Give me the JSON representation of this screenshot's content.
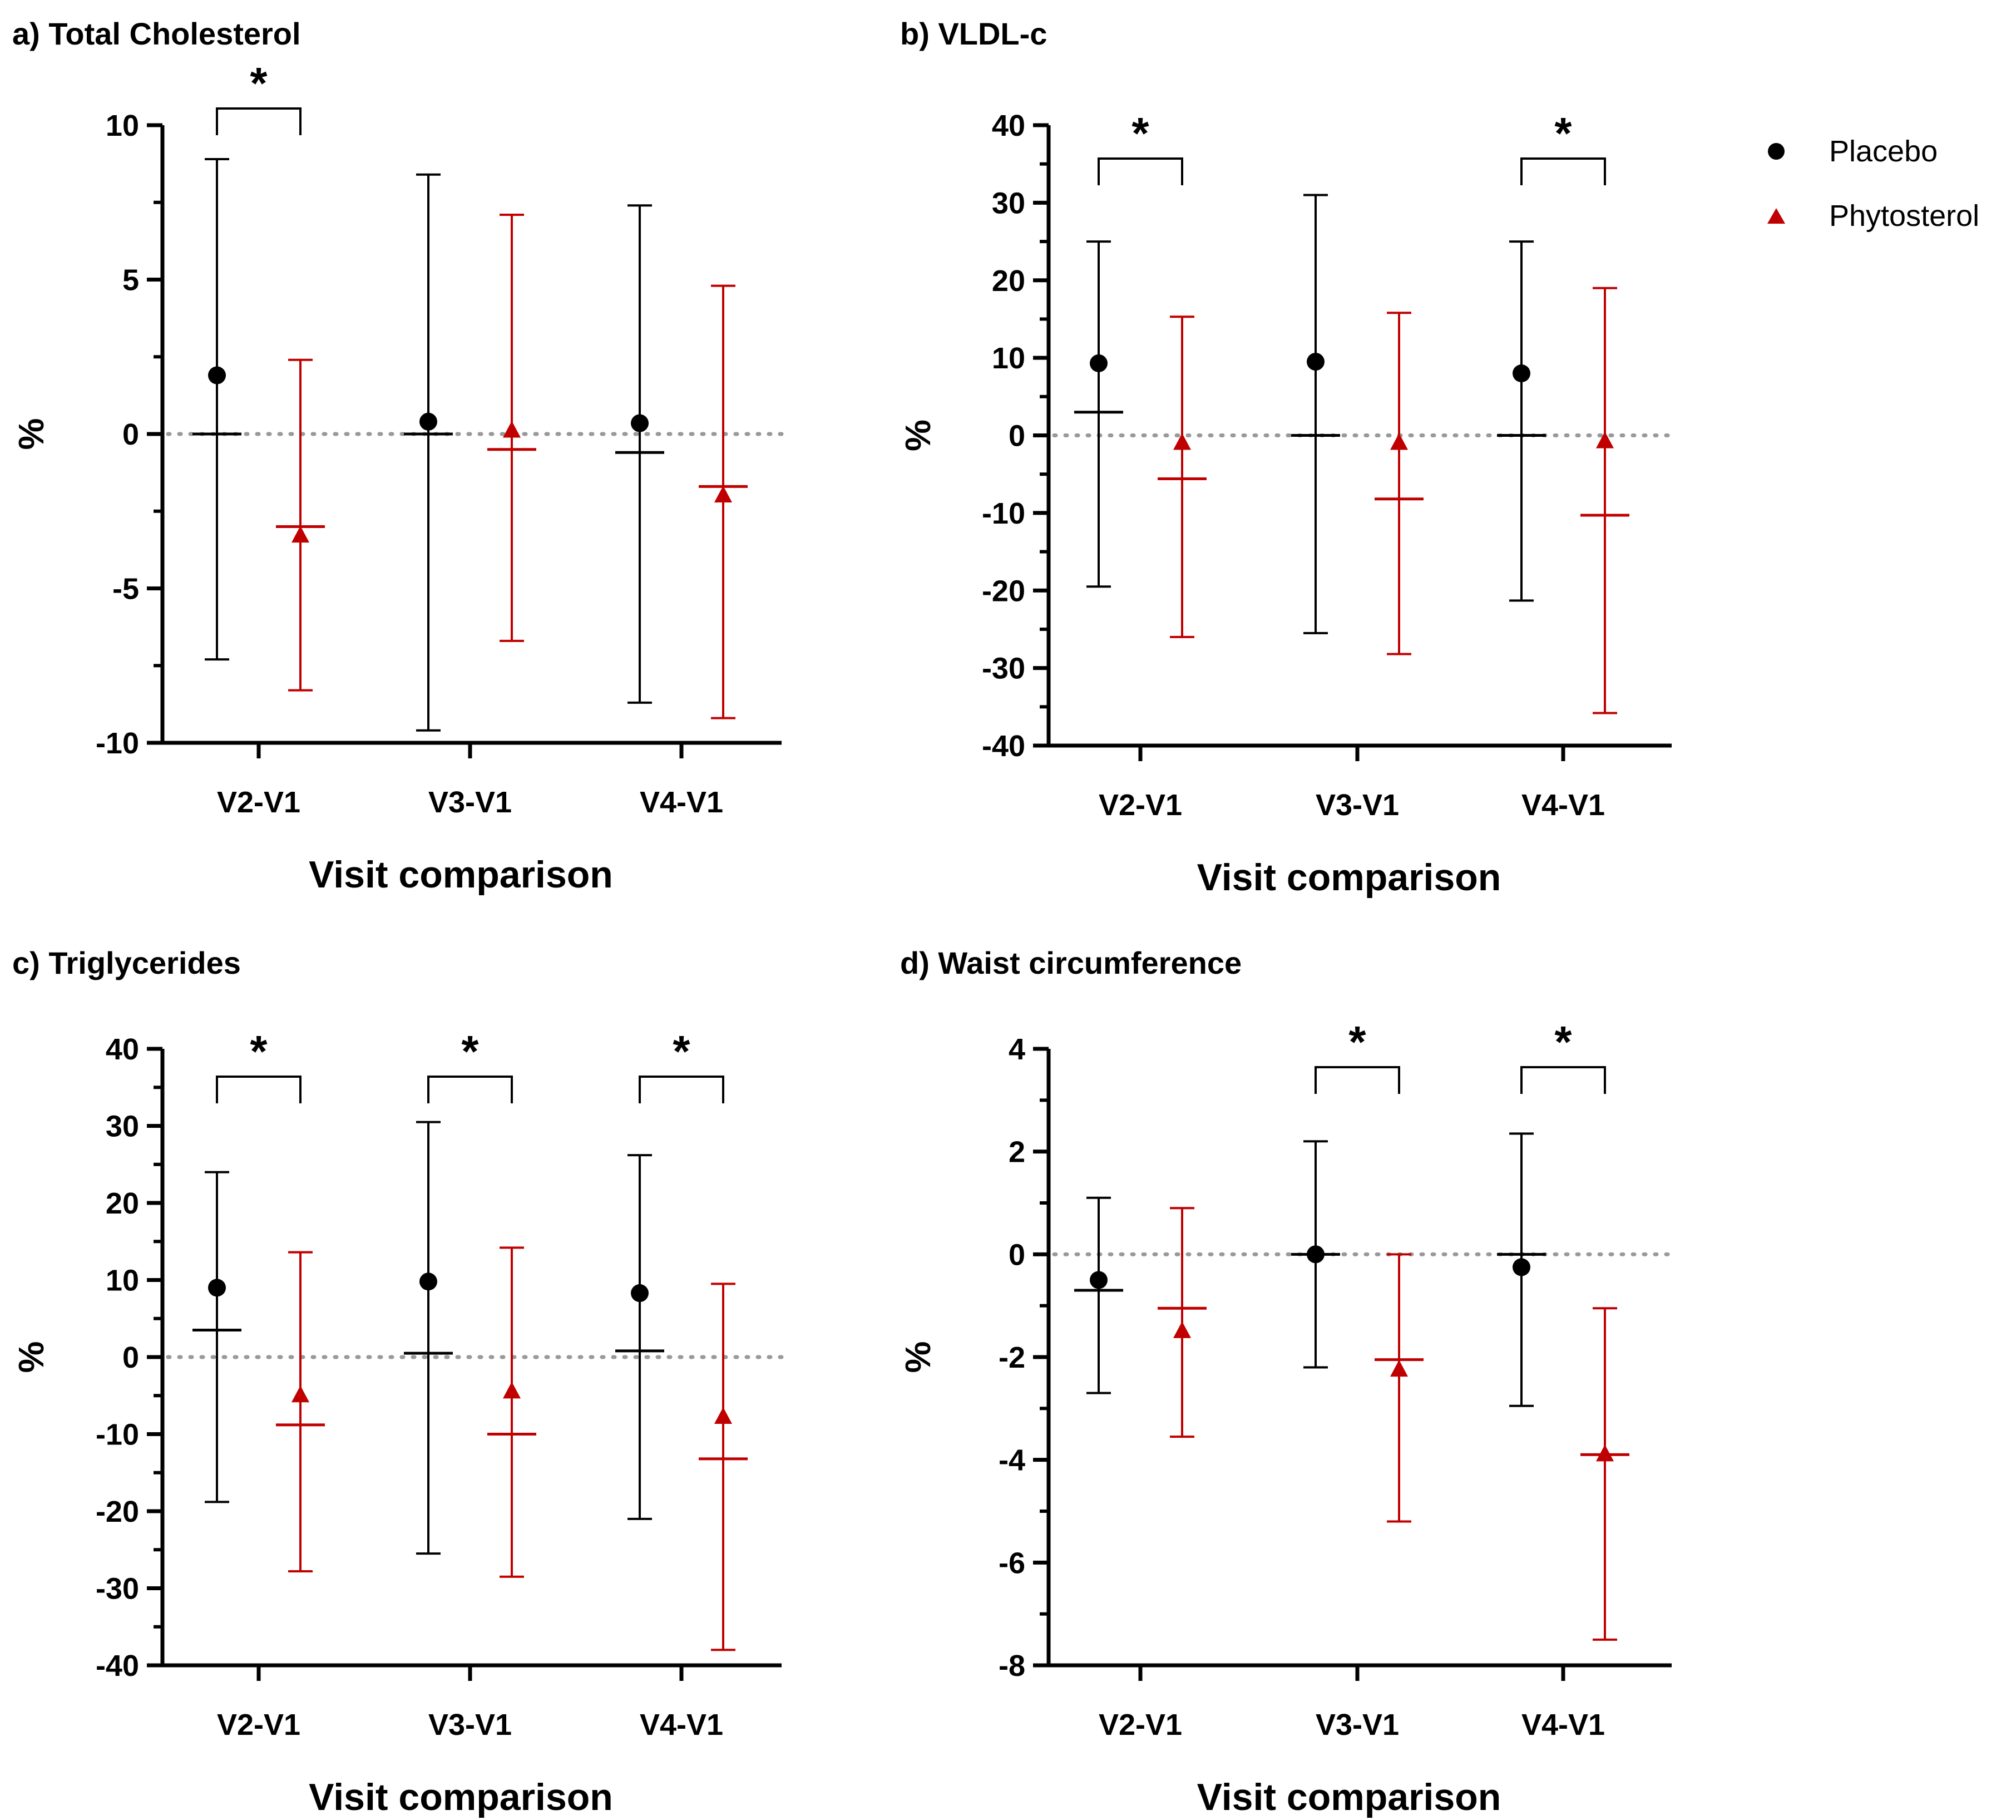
{
  "chart_data": [
    {
      "type": "scatter",
      "title": "a) Total Cholesterol",
      "xlabel": "Visit comparison",
      "ylabel": "%",
      "categories": [
        "V2-V1",
        "V3-V1",
        "V4-V1"
      ],
      "ylim": [
        -10,
        10
      ],
      "yticks": [
        10,
        5,
        0,
        -5,
        -10
      ],
      "ytick_labels": [
        "10",
        "5",
        "0",
        "-5",
        "-10"
      ],
      "reference_line": 0,
      "series": [
        {
          "name": "Placebo",
          "mean": [
            1.9,
            0.4,
            0.35
          ],
          "median": [
            0.0,
            0.0,
            -0.6
          ],
          "lower": [
            -7.3,
            -9.6,
            -8.7
          ],
          "upper": [
            8.9,
            8.4,
            7.4
          ]
        },
        {
          "name": "Phytosterol",
          "mean": [
            -3.3,
            0.1,
            -2.0
          ],
          "median": [
            -3.0,
            -0.5,
            -1.7
          ],
          "lower": [
            -8.3,
            -6.7,
            -9.2
          ],
          "upper": [
            2.4,
            7.1,
            4.8
          ]
        }
      ],
      "significance": [
        {
          "category": "V2-V1",
          "label": "*"
        }
      ]
    },
    {
      "type": "scatter",
      "title": "b) VLDL-c",
      "xlabel": "Visit comparison",
      "ylabel": "%",
      "categories": [
        "V2-V1",
        "V3-V1",
        "V4-V1"
      ],
      "ylim": [
        -40,
        40
      ],
      "yticks": [
        40,
        30,
        20,
        10,
        0,
        -10,
        -20,
        -30,
        -40
      ],
      "ytick_labels": [
        "40",
        "30",
        "20",
        "10",
        "0",
        "-10",
        "-20",
        "-30",
        "-40"
      ],
      "reference_line": 0,
      "series": [
        {
          "name": "Placebo",
          "mean": [
            9.3,
            9.5,
            8.0
          ],
          "median": [
            3.0,
            0.0,
            0.0
          ],
          "lower": [
            -19.5,
            -25.5,
            -21.3
          ],
          "upper": [
            25.0,
            31.0,
            25.0
          ]
        },
        {
          "name": "Phytosterol",
          "mean": [
            -1.0,
            -1.0,
            -0.8
          ],
          "median": [
            -5.6,
            -8.2,
            -10.3
          ],
          "lower": [
            -26.0,
            -28.2,
            -35.8
          ],
          "upper": [
            15.3,
            15.8,
            19.0
          ]
        }
      ],
      "significance": [
        {
          "category": "V2-V1",
          "label": "*"
        },
        {
          "category": "V4-V1",
          "label": "*"
        }
      ]
    },
    {
      "type": "scatter",
      "title": "c) Triglycerides",
      "xlabel": "Visit comparison",
      "ylabel": "%",
      "categories": [
        "V2-V1",
        "V3-V1",
        "V4-V1"
      ],
      "ylim": [
        -40,
        40
      ],
      "yticks": [
        40,
        30,
        20,
        10,
        0,
        -10,
        -20,
        -30,
        -40
      ],
      "ytick_labels": [
        "40",
        "30",
        "20",
        "10",
        "0",
        "-10",
        "-20",
        "-30",
        "-40"
      ],
      "reference_line": 0,
      "series": [
        {
          "name": "Placebo",
          "mean": [
            9.0,
            9.8,
            8.3
          ],
          "median": [
            3.5,
            0.5,
            0.8
          ],
          "lower": [
            -18.8,
            -25.5,
            -21.0
          ],
          "upper": [
            24.0,
            30.5,
            26.2
          ]
        },
        {
          "name": "Phytosterol",
          "mean": [
            -5.0,
            -4.5,
            -7.8
          ],
          "median": [
            -8.8,
            -10.0,
            -13.2
          ],
          "lower": [
            -27.8,
            -28.5,
            -38.0
          ],
          "upper": [
            13.6,
            14.2,
            9.5
          ]
        }
      ],
      "significance": [
        {
          "category": "V2-V1",
          "label": "*"
        },
        {
          "category": "V3-V1",
          "label": "*"
        },
        {
          "category": "V4-V1",
          "label": "*"
        }
      ]
    },
    {
      "type": "scatter",
      "title": "d) Waist circumference",
      "xlabel": "Visit comparison",
      "ylabel": "%",
      "categories": [
        "V2-V1",
        "V3-V1",
        "V4-V1"
      ],
      "ylim": [
        -8,
        4
      ],
      "yticks": [
        4,
        2,
        0,
        -2,
        -4,
        -6,
        -8
      ],
      "ytick_labels": [
        "4",
        "2",
        "0",
        "-2",
        "-4",
        "-6",
        "-8"
      ],
      "reference_line": 0,
      "series": [
        {
          "name": "Placebo",
          "mean": [
            -0.5,
            0.0,
            -0.25
          ],
          "median": [
            -0.7,
            0.0,
            0.0
          ],
          "lower": [
            -2.7,
            -2.2,
            -2.95
          ],
          "upper": [
            1.1,
            2.2,
            2.35
          ]
        },
        {
          "name": "Phytosterol",
          "mean": [
            -1.5,
            -2.25,
            -3.9
          ],
          "median": [
            -1.05,
            -2.05,
            -3.9
          ],
          "lower": [
            -3.55,
            -5.2,
            -7.5
          ],
          "upper": [
            0.9,
            0.0,
            -1.05
          ]
        }
      ],
      "significance": [
        {
          "category": "V3-V1",
          "label": "*"
        },
        {
          "category": "V4-V1",
          "label": "*"
        }
      ]
    }
  ],
  "legend": {
    "items": [
      {
        "label": "Placebo",
        "color": "#000000",
        "marker": "circle"
      },
      {
        "label": "Phytosterol",
        "color": "#c00000",
        "marker": "triangle"
      }
    ]
  },
  "colors": {
    "Placebo": "#000000",
    "Phytosterol": "#c00000",
    "reference_line": "#999999"
  }
}
